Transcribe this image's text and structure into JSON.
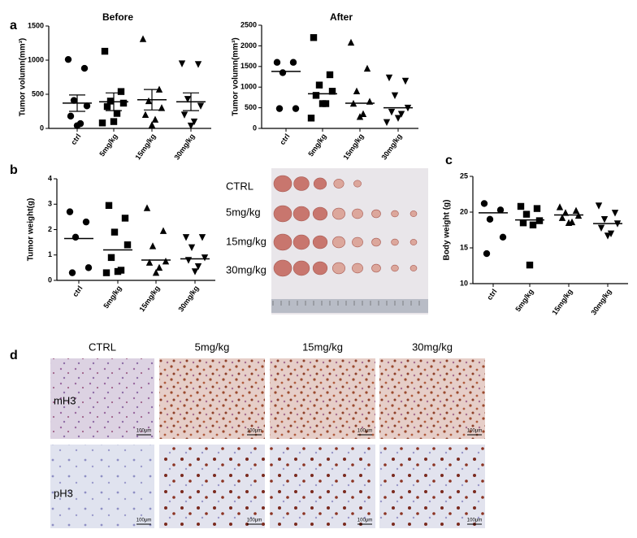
{
  "chart_data": [
    {
      "type": "dot",
      "title": "Before",
      "y_label": "Tumor volumn(mm³)",
      "categories": [
        "ctrl",
        "5mg/kg",
        "15mg/kg",
        "30mg/kg"
      ],
      "markers": [
        "circle",
        "square",
        "triangle",
        "triangle-down"
      ],
      "color": "#000000",
      "values": [
        [
          1010,
          880,
          410,
          330,
          180,
          70,
          40
        ],
        [
          1130,
          540,
          400,
          370,
          320,
          220,
          100,
          80
        ],
        [
          1310,
          570,
          400,
          300,
          200,
          130,
          50
        ],
        [
          950,
          940,
          430,
          330,
          200,
          100,
          40
        ]
      ],
      "mean": [
        370,
        390,
        420,
        390
      ],
      "sem": [
        120,
        130,
        150,
        130
      ],
      "ylim": [
        0,
        1500
      ],
      "yticks": [
        0,
        500,
        1000,
        1500
      ]
    },
    {
      "type": "dot",
      "title": "After",
      "y_label": "Tumor volumn(mm³)",
      "categories": [
        "ctrl",
        "5mg/kg",
        "15mg/kg",
        "30mg/kg"
      ],
      "markers": [
        "circle",
        "square",
        "triangle",
        "triangle-down"
      ],
      "color": "#000000",
      "values": [
        [
          1600,
          1600,
          1350,
          480,
          480
        ],
        [
          2200,
          1300,
          1050,
          900,
          800,
          600,
          600,
          250
        ],
        [
          2080,
          1450,
          900,
          650,
          600,
          350,
          280
        ],
        [
          1230,
          1150,
          800,
          500,
          400,
          350,
          250,
          150
        ]
      ],
      "mean": [
        1380,
        840,
        610,
        500
      ],
      "ylim": [
        0,
        2500
      ],
      "yticks": [
        0,
        500,
        1000,
        1500,
        2000,
        2500
      ]
    },
    {
      "type": "dot",
      "y_label": "Tumor weight(g)",
      "categories": [
        "ctrl",
        "5mg/kg",
        "15mg/kg",
        "30mg/kg"
      ],
      "markers": [
        "circle",
        "square",
        "triangle",
        "triangle-down"
      ],
      "color": "#000000",
      "values": [
        [
          2.7,
          2.3,
          1.7,
          0.5,
          0.3
        ],
        [
          2.95,
          2.45,
          1.9,
          1.4,
          0.9,
          0.4,
          0.35,
          0.3
        ],
        [
          2.85,
          1.95,
          1.35,
          0.75,
          0.7,
          0.5,
          0.3
        ],
        [
          1.7,
          1.7,
          1.3,
          0.9,
          0.8,
          0.55,
          0.35
        ]
      ],
      "mean": [
        1.65,
        1.2,
        0.8,
        0.85
      ],
      "ylim": [
        0,
        4
      ],
      "yticks": [
        0,
        1,
        2,
        3,
        4
      ]
    },
    {
      "type": "dot",
      "y_label": "Body weight (g)",
      "categories": [
        "ctrl",
        "5mg/kg",
        "15mg/kg",
        "30mg/kg"
      ],
      "markers": [
        "circle",
        "square",
        "triangle",
        "triangle-down"
      ],
      "color": "#000000",
      "values": [
        [
          21.2,
          20.3,
          19.0,
          16.5,
          14.2
        ],
        [
          20.8,
          20.5,
          19.7,
          18.8,
          18.5,
          18.2,
          12.6
        ],
        [
          20.7,
          20.2,
          19.9,
          19.5,
          19.2,
          18.6,
          18.5
        ],
        [
          20.9,
          19.9,
          19.0,
          18.4,
          17.8,
          17.0,
          16.7
        ]
      ],
      "mean": [
        19.9,
        18.9,
        19.6,
        18.4
      ],
      "ylim": [
        10,
        25
      ],
      "yticks": [
        10,
        15,
        20,
        25
      ]
    }
  ],
  "panel_labels": [
    "a",
    "b",
    "c",
    "d"
  ],
  "photo": {
    "rows": [
      "CTRL",
      "5mg/kg",
      "15mg/kg",
      "30mg/kg"
    ]
  },
  "histology": {
    "columns": [
      "CTRL",
      "5mg/kg",
      "15mg/kg",
      "30mg/kg"
    ],
    "rows": [
      "mH3",
      "pH3"
    ],
    "scale_bar": "100μm"
  }
}
